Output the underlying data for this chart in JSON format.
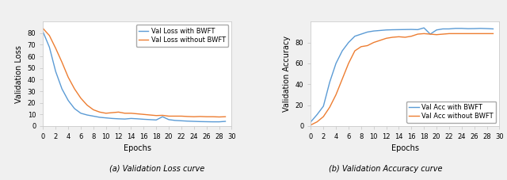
{
  "loss_with_bwft": [
    81,
    68,
    47,
    32,
    22,
    15,
    11,
    9.5,
    8.5,
    7.5,
    7.0,
    6.5,
    6.2,
    6.0,
    6.5,
    6.2,
    5.8,
    5.5,
    5.2,
    8.0,
    5.5,
    4.8,
    4.5,
    4.2,
    4.0,
    3.8,
    3.7,
    3.6,
    3.6,
    4.0
  ],
  "loss_without_bwft": [
    84,
    78,
    67,
    55,
    42,
    32,
    24,
    18,
    14,
    12,
    11,
    11.5,
    12,
    11,
    11,
    10.5,
    10,
    9.5,
    9.0,
    9.2,
    8.5,
    8.5,
    8.5,
    8.2,
    8.0,
    8.2,
    8.0,
    8.0,
    7.8,
    8.0
  ],
  "acc_with_bwft": [
    4,
    11,
    19,
    42,
    60,
    72,
    80,
    86,
    88,
    90,
    91,
    91.5,
    92,
    92.2,
    92.3,
    92.4,
    92.5,
    92.3,
    94,
    88,
    92,
    93,
    93,
    93.5,
    93.5,
    93.2,
    93.3,
    93.5,
    93.3,
    93.0
  ],
  "acc_without_bwft": [
    1,
    4,
    9,
    18,
    30,
    45,
    60,
    72,
    76,
    77,
    80,
    82,
    84,
    85,
    85.5,
    85,
    86,
    88,
    88.5,
    88,
    87.5,
    88,
    88.5,
    88.5,
    88.5,
    88.5,
    88.5,
    88.5,
    88.5,
    88.5
  ],
  "epochs": [
    0,
    1,
    2,
    3,
    4,
    5,
    6,
    7,
    8,
    9,
    10,
    11,
    12,
    13,
    14,
    15,
    16,
    17,
    18,
    19,
    20,
    21,
    22,
    23,
    24,
    25,
    26,
    27,
    28,
    29
  ],
  "color_bwft": "#5b9bd5",
  "color_no_bwft": "#ed7d31",
  "loss_ylabel": "Validation Loss",
  "acc_ylabel": "Validation Accuracy",
  "xlabel": "Epochs",
  "loss_legend1": "Val Loss with BWFT",
  "loss_legend2": "Val Loss without BWFT",
  "acc_legend1": "Val Acc with BWFT",
  "acc_legend2": "Val Acc without BWFT",
  "caption_loss": "(a) Validation Loss curve",
  "caption_acc": "(b) Validation Accuracy curve",
  "loss_yticks": [
    0,
    10,
    20,
    30,
    40,
    50,
    60,
    70,
    80
  ],
  "loss_ylim": [
    0,
    90
  ],
  "acc_yticks": [
    0,
    20,
    40,
    60,
    80
  ],
  "acc_ylim": [
    0,
    100
  ],
  "xticks": [
    0,
    2,
    4,
    6,
    8,
    10,
    12,
    14,
    16,
    18,
    20,
    22,
    24,
    26,
    28,
    30
  ],
  "bg_color": "#f0f0f0"
}
